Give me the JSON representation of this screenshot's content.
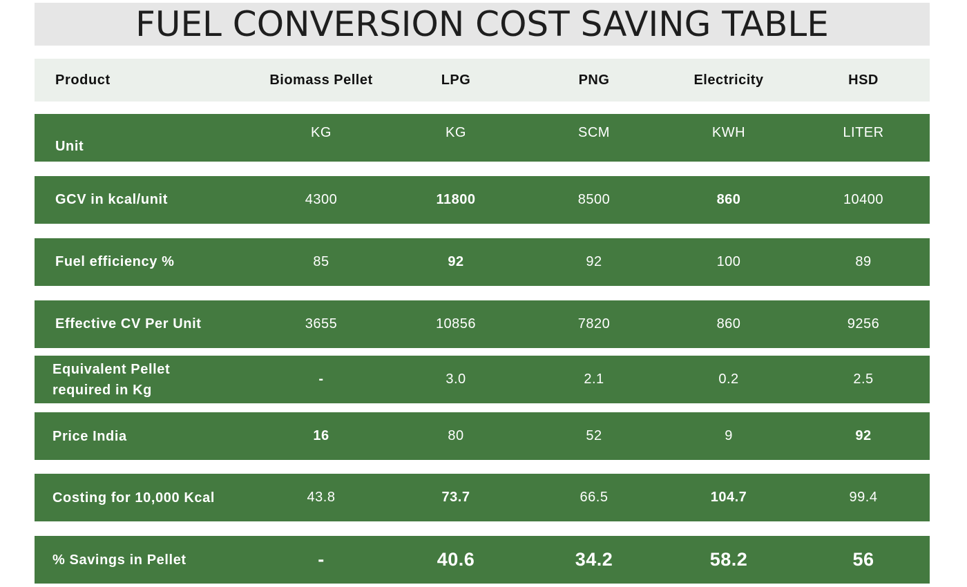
{
  "title": "FUEL CONVERSION COST SAVING TABLE",
  "colors": {
    "row_green": "#447a40",
    "header_bg": "#ebf0eb",
    "title_bg": "#e6e6e6"
  },
  "table": {
    "header": {
      "label": "Product",
      "cols": [
        "Biomass Pellet",
        "LPG",
        "PNG",
        "Electricity",
        "HSD"
      ]
    },
    "rows": [
      {
        "label": "Unit",
        "values": [
          "KG",
          "KG",
          "SCM",
          "KWH",
          "LITER"
        ]
      },
      {
        "label": "GCV in kcal/unit",
        "values": [
          "4300",
          "11800",
          "8500",
          "860",
          "10400"
        ]
      },
      {
        "label": "Fuel efficiency %",
        "values": [
          "85",
          "92",
          "92",
          "100",
          "89"
        ]
      },
      {
        "label": "Effective CV Per Unit",
        "values": [
          "3655",
          "10856",
          "7820",
          "860",
          "9256"
        ]
      },
      {
        "label": "Equivalent Pellet required in Kg",
        "values": [
          "-",
          "3.0",
          "2.1",
          "0.2",
          "2.5"
        ]
      },
      {
        "label": "Price India",
        "values": [
          "16",
          "80",
          "52",
          "9",
          "92"
        ]
      },
      {
        "label": "Costing for 10,000 Kcal",
        "values": [
          "43.8",
          "73.7",
          "66.5",
          "104.7",
          "99.4"
        ]
      },
      {
        "label": "% Savings in Pellet",
        "values": [
          "-",
          "40.6",
          "34.2",
          "58.2",
          "56"
        ]
      }
    ]
  }
}
